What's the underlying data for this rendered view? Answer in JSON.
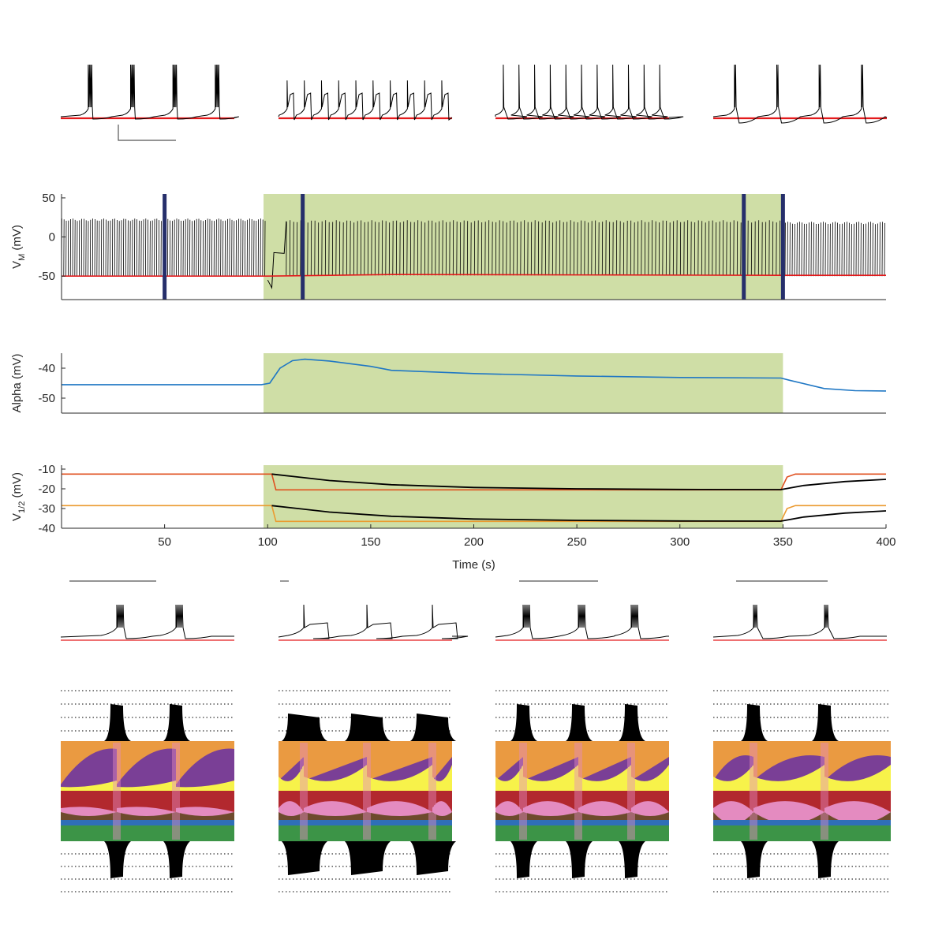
{
  "colors": {
    "trace": "#000000",
    "threshold": "#e31a1c",
    "shade": "#cfdea6",
    "marker": "#262f6b",
    "alpha": "#1f77c4",
    "v_half_upper": "#e0501f",
    "v_half_lower": "#eb9a2f",
    "fit": "#000000",
    "orange": "#ea9a41",
    "purple": "#7a3f96",
    "yellow": "#f7f24a",
    "red": "#b2282e",
    "pink": "#e48bc0",
    "brown": "#6e4a2d",
    "blue": "#2f6fb8",
    "green": "#3c9447"
  },
  "chart_data": [
    {
      "id": "vm",
      "type": "line",
      "ylabel": "V",
      "ylabel_sub": "M",
      "ylabel_unit": " (mV)",
      "xlim": [
        0,
        400
      ],
      "ylim": [
        -80,
        55
      ],
      "yticks": [
        "50",
        "0",
        "-50"
      ],
      "ytick_values": [
        50,
        0,
        -50
      ],
      "shaded_interval": [
        98,
        350
      ],
      "markers": [
        50,
        117,
        331,
        350
      ],
      "series": [
        {
          "role": "spikes",
          "segments": [
            [
              0,
              99,
              22,
              -50,
              2.8
            ],
            [
              109,
              349,
              20,
              -49,
              4.5
            ],
            [
              351,
              400,
              18,
              -50,
              3.0
            ]
          ]
        },
        {
          "role": "threshold",
          "points": [
            [
              0,
              -50
            ],
            [
              100,
              -50
            ],
            [
              160,
              -48
            ],
            [
              350,
              -49
            ],
            [
              400,
              -49
            ]
          ]
        }
      ]
    },
    {
      "id": "alpha",
      "type": "line",
      "ylabel": "Alpha (mV)",
      "xlim": [
        0,
        400
      ],
      "ylim": [
        -55,
        -35
      ],
      "yticks": [
        "-40",
        "-50"
      ],
      "ytick_values": [
        -40,
        -50
      ],
      "shaded_interval": [
        98,
        350
      ],
      "series": [
        {
          "role": "alpha",
          "points": [
            [
              0,
              -45.5
            ],
            [
              97,
              -45.5
            ],
            [
              101,
              -45
            ],
            [
              106,
              -40
            ],
            [
              112,
              -37.5
            ],
            [
              118,
              -37
            ],
            [
              130,
              -37.6
            ],
            [
              150,
              -39.4
            ],
            [
              160,
              -40.7
            ],
            [
              200,
              -41.8
            ],
            [
              250,
              -42.6
            ],
            [
              300,
              -43.1
            ],
            [
              349,
              -43.3
            ],
            [
              353,
              -44
            ],
            [
              370,
              -46.8
            ],
            [
              385,
              -47.5
            ],
            [
              400,
              -47.6
            ]
          ]
        }
      ]
    },
    {
      "id": "vhalf",
      "type": "line",
      "ylabel": "V",
      "ylabel_sub": "1/2",
      "ylabel_unit": " (mV)",
      "xlabel": "Time (s)",
      "xlim": [
        0,
        400
      ],
      "ylim": [
        -40,
        -8
      ],
      "xticks": [
        "50",
        "100",
        "150",
        "200",
        "250",
        "300",
        "350",
        "400"
      ],
      "xtick_values": [
        50,
        100,
        150,
        200,
        250,
        300,
        350,
        400
      ],
      "yticks": [
        "-10",
        "-20",
        "-30",
        "-40"
      ],
      "ytick_values": [
        -10,
        -20,
        -30,
        -40
      ],
      "shaded_interval": [
        98,
        350
      ],
      "series": [
        {
          "role": "v_half_upper",
          "points": [
            [
              0,
              -12.5
            ],
            [
              102,
              -12.5
            ],
            [
              104,
              -20.5
            ],
            [
              349,
              -20.5
            ],
            [
              352,
              -14
            ],
            [
              356,
              -12.5
            ],
            [
              400,
              -12.5
            ]
          ]
        },
        {
          "role": "v_half_lower",
          "points": [
            [
              0,
              -28.5
            ],
            [
              102,
              -28.5
            ],
            [
              104,
              -36.5
            ],
            [
              349,
              -36.5
            ],
            [
              352,
              -30
            ],
            [
              356,
              -28.5
            ],
            [
              400,
              -28.5
            ]
          ]
        },
        {
          "role": "fit_upper",
          "points": [
            [
              102,
              -12.5
            ],
            [
              130,
              -15.8
            ],
            [
              160,
              -17.9
            ],
            [
              200,
              -19.3
            ],
            [
              250,
              -20
            ],
            [
              300,
              -20.3
            ],
            [
              349,
              -20.4
            ],
            [
              360,
              -18.3
            ],
            [
              380,
              -16.3
            ],
            [
              400,
              -15.2
            ]
          ]
        },
        {
          "role": "fit_lower",
          "points": [
            [
              102,
              -28.5
            ],
            [
              130,
              -31.8
            ],
            [
              160,
              -33.9
            ],
            [
              200,
              -35.3
            ],
            [
              250,
              -36
            ],
            [
              300,
              -36.3
            ],
            [
              349,
              -36.4
            ],
            [
              360,
              -34.3
            ],
            [
              380,
              -32.3
            ],
            [
              400,
              -31.2
            ]
          ]
        }
      ]
    }
  ]
}
